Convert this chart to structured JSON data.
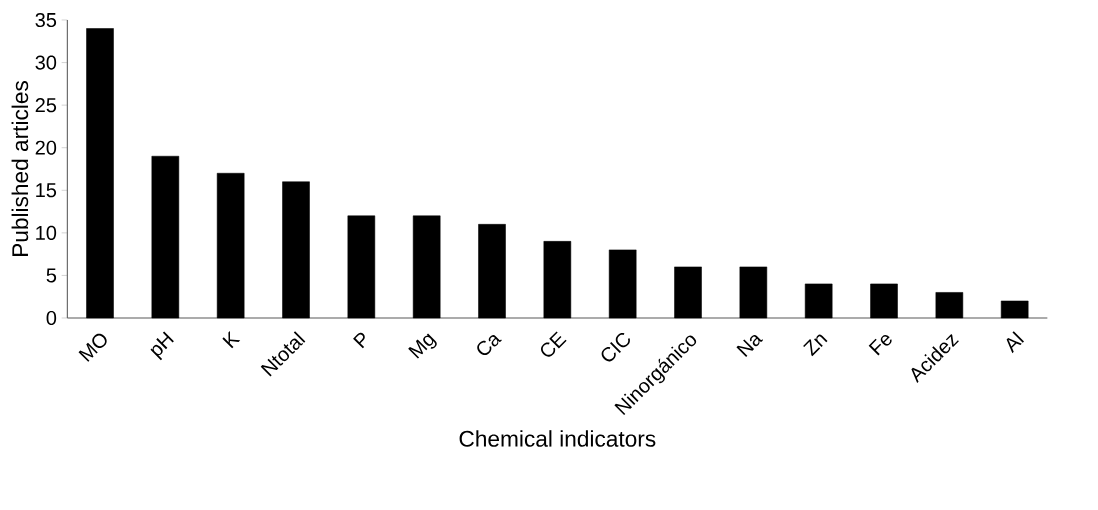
{
  "chart_data": {
    "type": "bar",
    "xlabel": "Chemical indicators",
    "ylabel": "Published articles",
    "categories": [
      "MO",
      "pH",
      "K",
      "Ntotal",
      "P",
      "Mg",
      "Ca",
      "CE",
      "CIC",
      "Ninorgánico",
      "Na",
      "Zn",
      "Fe",
      "Acidez",
      "Al"
    ],
    "values": [
      34,
      19,
      17,
      16,
      12,
      12,
      11,
      9,
      8,
      6,
      6,
      4,
      4,
      3,
      2
    ],
    "color": "#000000",
    "ylim": [
      0,
      35
    ],
    "yticks": [
      0,
      5,
      10,
      15,
      20,
      25,
      30,
      35
    ],
    "grid": false
  }
}
